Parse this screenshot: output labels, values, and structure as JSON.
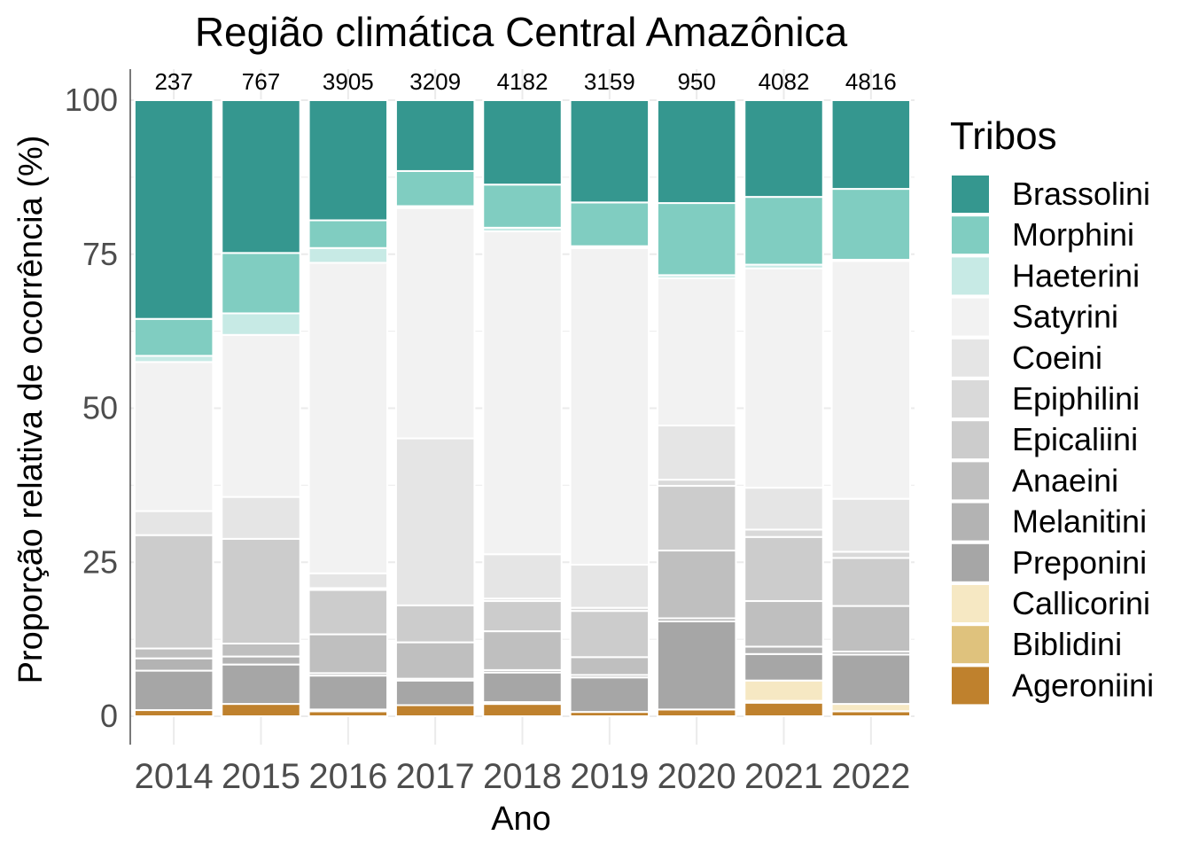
{
  "chart_data": {
    "type": "bar",
    "stacked": true,
    "normalized_percent": true,
    "title": "Região climática Central Amazônica",
    "xlabel": "Ano",
    "ylabel": "Proporção relativa de ocorrência (%)",
    "ylim": [
      0,
      100
    ],
    "yticks": [
      0,
      25,
      50,
      75,
      100
    ],
    "categories": [
      "2014",
      "2015",
      "2016",
      "2017",
      "2018",
      "2019",
      "2020",
      "2021",
      "2022"
    ],
    "counts": [
      "237",
      "767",
      "3905",
      "3209",
      "4182",
      "3159",
      "950",
      "4082",
      "4816"
    ],
    "legend_title": "Tribos",
    "legend_position": "right",
    "grid": true,
    "series": [
      {
        "name": "Brassolini",
        "color": "#35978f",
        "values": [
          35.5,
          24.8,
          19.5,
          11.5,
          13.7,
          16.6,
          16.7,
          15.7,
          14.4
        ]
      },
      {
        "name": "Morphini",
        "color": "#80cdc1",
        "values": [
          6.0,
          9.8,
          4.5,
          5.7,
          7.0,
          7.1,
          11.7,
          11.0,
          11.5
        ]
      },
      {
        "name": "Haeterini",
        "color": "#c7eae5",
        "values": [
          1.0,
          3.5,
          2.4,
          0.3,
          0.6,
          0.3,
          0.5,
          0.6,
          0.2
        ]
      },
      {
        "name": "Satyrini",
        "color": "#f2f2f2",
        "values": [
          24.2,
          26.3,
          50.4,
          37.4,
          52.4,
          51.4,
          23.9,
          35.6,
          38.6
        ]
      },
      {
        "name": "Coeini",
        "color": "#e5e5e5",
        "values": [
          3.9,
          6.8,
          2.4,
          27.1,
          7.2,
          7.0,
          8.8,
          6.8,
          8.6
        ]
      },
      {
        "name": "Epiphilini",
        "color": "#d9d9d9",
        "values": [
          0.0,
          0.0,
          0.3,
          0.0,
          0.4,
          0.5,
          1.0,
          1.2,
          1.0
        ]
      },
      {
        "name": "Epicaliini",
        "color": "#cccccc",
        "values": [
          18.4,
          17.0,
          7.2,
          6.0,
          4.9,
          7.5,
          10.5,
          10.4,
          7.8
        ]
      },
      {
        "name": "Anaeini",
        "color": "#bfbfbf",
        "values": [
          1.6,
          2.1,
          6.3,
          5.9,
          6.3,
          2.9,
          11.0,
          7.4,
          7.4
        ]
      },
      {
        "name": "Melanitini",
        "color": "#b3b3b3",
        "values": [
          2.0,
          1.3,
          0.4,
          0.3,
          0.4,
          0.4,
          0.5,
          1.2,
          0.5
        ]
      },
      {
        "name": "Preponini",
        "color": "#a6a6a6",
        "values": [
          6.4,
          6.4,
          5.5,
          4.0,
          4.8,
          5.6,
          14.3,
          4.3,
          8.0
        ]
      },
      {
        "name": "Callicorini",
        "color": "#f6e8c3",
        "values": [
          0.0,
          0.0,
          0.0,
          0.0,
          0.0,
          0.0,
          0.0,
          3.3,
          1.2
        ]
      },
      {
        "name": "Biblidini",
        "color": "#dfc27d",
        "values": [
          0.0,
          0.0,
          0.3,
          0.0,
          0.3,
          0.0,
          0.0,
          0.3,
          0.0
        ]
      },
      {
        "name": "Ageroniini",
        "color": "#bf812d",
        "values": [
          1.0,
          2.0,
          0.8,
          1.8,
          2.0,
          0.7,
          1.1,
          2.2,
          0.8
        ]
      }
    ]
  }
}
